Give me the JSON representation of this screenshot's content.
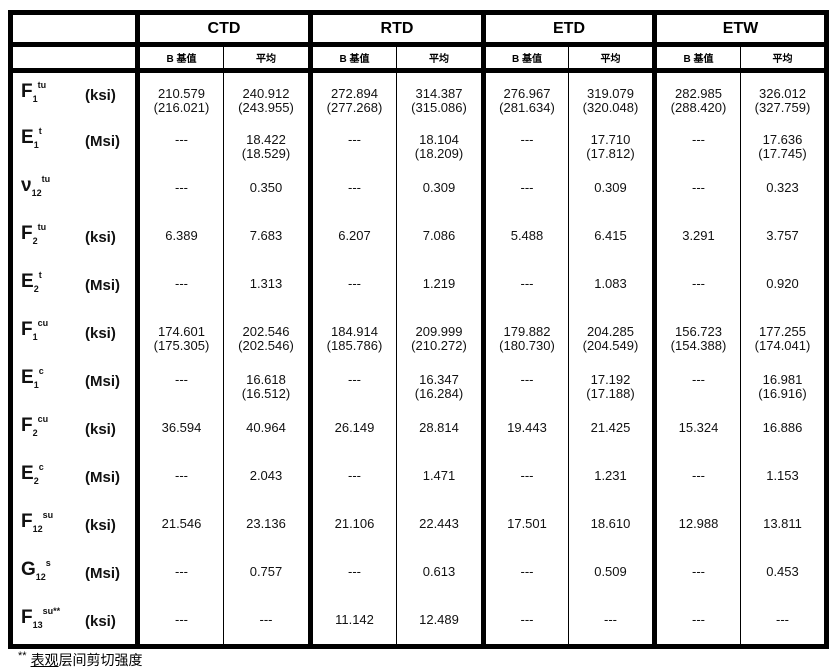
{
  "header": {
    "groups": [
      "CTD",
      "RTD",
      "ETD",
      "ETW"
    ],
    "sub_labels": [
      "B 基值",
      "平均",
      "B 基值",
      "平均",
      "B 基值",
      "平均",
      "B 基值",
      "平均"
    ]
  },
  "rows": [
    {
      "symbol": "F",
      "sub": "1",
      "sup": "tu",
      "unit": "(ksi)",
      "cells": [
        "210.579\n(216.021)",
        "240.912\n(243.955)",
        "272.894\n(277.268)",
        "314.387\n(315.086)",
        "276.967\n(281.634)",
        "319.079\n(320.048)",
        "282.985\n(288.420)",
        "326.012\n(327.759)"
      ]
    },
    {
      "symbol": "E",
      "sub": "1",
      "sup": "t",
      "unit": "(Msi)",
      "cells": [
        "---",
        "18.422\n(18.529)",
        "---",
        "18.104\n(18.209)",
        "---",
        "17.710\n(17.812)",
        "---",
        "17.636\n(17.745)"
      ]
    },
    {
      "symbol": "ν",
      "sub": "12",
      "sup": "tu",
      "unit": "",
      "cells": [
        "---",
        "0.350",
        "---",
        "0.309",
        "---",
        "0.309",
        "---",
        "0.323"
      ]
    },
    {
      "symbol": "F",
      "sub": "2",
      "sup": "tu",
      "unit": "(ksi)",
      "cells": [
        "6.389",
        "7.683",
        "6.207",
        "7.086",
        "5.488",
        "6.415",
        "3.291",
        "3.757"
      ]
    },
    {
      "symbol": "E",
      "sub": "2",
      "sup": "t",
      "unit": "(Msi)",
      "cells": [
        "---",
        "1.313",
        "---",
        "1.219",
        "---",
        "1.083",
        "---",
        "0.920"
      ]
    },
    {
      "symbol": "F",
      "sub": "1",
      "sup": "cu",
      "unit": "(ksi)",
      "cells": [
        "174.601\n(175.305)",
        "202.546\n(202.546)",
        "184.914\n(185.786)",
        "209.999\n(210.272)",
        "179.882\n(180.730)",
        "204.285\n(204.549)",
        "156.723\n(154.388)",
        "177.255\n(174.041)"
      ]
    },
    {
      "symbol": "E",
      "sub": "1",
      "sup": "c",
      "unit": "(Msi)",
      "cells": [
        "---",
        "16.618\n(16.512)",
        "---",
        "16.347\n(16.284)",
        "---",
        "17.192\n(17.188)",
        "---",
        "16.981\n(16.916)"
      ]
    },
    {
      "symbol": "F",
      "sub": "2",
      "sup": "cu",
      "unit": "(ksi)",
      "cells": [
        "36.594",
        "40.964",
        "26.149",
        "28.814",
        "19.443",
        "21.425",
        "15.324",
        "16.886"
      ]
    },
    {
      "symbol": "E",
      "sub": "2",
      "sup": "c",
      "unit": "(Msi)",
      "cells": [
        "---",
        "2.043",
        "---",
        "1.471",
        "---",
        "1.231",
        "---",
        "1.153"
      ]
    },
    {
      "symbol": "F",
      "sub": "12",
      "sup": "su",
      "unit": "(ksi)",
      "cells": [
        "21.546",
        "23.136",
        "21.106",
        "22.443",
        "17.501",
        "18.610",
        "12.988",
        "13.811"
      ]
    },
    {
      "symbol": "G",
      "sub": "12",
      "sup": "s",
      "unit": "(Msi)",
      "cells": [
        "---",
        "0.757",
        "---",
        "0.613",
        "---",
        "0.509",
        "---",
        "0.453"
      ]
    },
    {
      "symbol": "F",
      "sub": "13",
      "sup": "su**",
      "unit": "(ksi)",
      "cells": [
        "---",
        "---",
        "11.142",
        "12.489",
        "---",
        "---",
        "---",
        "---"
      ]
    }
  ],
  "footnote": {
    "marker": "**",
    "underlined": "表观",
    "text": "层间剪切强度"
  }
}
